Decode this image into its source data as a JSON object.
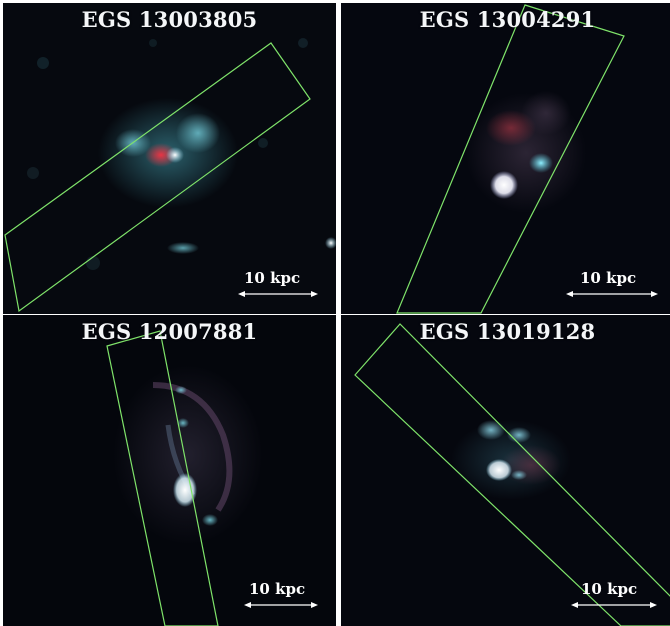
{
  "panels": [
    {
      "title": "EGS 13003805",
      "scale_label": "10 kpc"
    },
    {
      "title": "EGS 13004291",
      "scale_label": "10 kpc"
    },
    {
      "title": "EGS 12007881",
      "scale_label": "10 kpc"
    },
    {
      "title": "EGS 13019128",
      "scale_label": "10 kpc"
    }
  ],
  "colors": {
    "slit": "#7fe36a",
    "background": "#05070d",
    "scale_bar": "#ffffff",
    "galaxy_cyan": "#6fd6e8",
    "galaxy_red": "#d8343a"
  }
}
